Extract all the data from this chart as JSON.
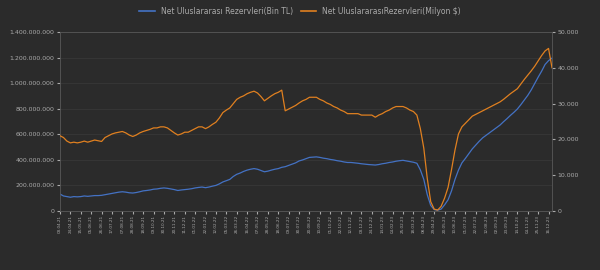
{
  "legend1": "Net Uluslararası Rezervleri(Bin TL)",
  "legend2": "Net UluslararasıRezervleri(Milyon $)",
  "line1_color": "#4472C4",
  "line2_color": "#E08020",
  "background_color": "#2b2b2b",
  "grid_color": "#3d3d3d",
  "text_color": "#aaaaaa",
  "left_ylim": [
    0,
    1400000000
  ],
  "right_ylim": [
    0,
    50000
  ],
  "left_yticks": [
    0,
    200000000,
    400000000,
    600000000,
    800000000,
    1000000000,
    1200000000,
    1400000000
  ],
  "right_yticks": [
    0,
    10000,
    20000,
    30000,
    40000,
    50000
  ],
  "dates": [
    "03.04.21",
    "10.04.21",
    "17.04.21",
    "24.04.21",
    "01.05.21",
    "08.05.21",
    "15.05.21",
    "22.05.21",
    "29.05.21",
    "05.06.21",
    "12.06.21",
    "19.06.21",
    "26.06.21",
    "03.07.21",
    "10.07.21",
    "17.07.21",
    "24.07.21",
    "31.07.21",
    "07.08.21",
    "14.08.21",
    "21.08.21",
    "28.08.21",
    "04.09.21",
    "11.09.21",
    "18.09.21",
    "25.09.21",
    "02.10.21",
    "09.10.21",
    "16.10.21",
    "23.10.21",
    "30.10.21",
    "06.11.21",
    "13.11.21",
    "20.11.21",
    "27.11.21",
    "04.12.21",
    "11.12.21",
    "18.12.21",
    "25.12.21",
    "01.01.22",
    "08.01.22",
    "15.01.22",
    "22.01.22",
    "29.01.22",
    "05.02.22",
    "12.02.22",
    "19.02.22",
    "26.02.22",
    "05.03.22",
    "12.03.22",
    "19.03.22",
    "26.03.22",
    "02.04.22",
    "09.04.22",
    "16.04.22",
    "23.04.22",
    "30.04.22",
    "07.05.22",
    "14.05.22",
    "21.05.22",
    "28.05.22",
    "04.06.22",
    "11.06.22",
    "18.06.22",
    "25.06.22",
    "02.07.22",
    "09.07.22",
    "16.07.22",
    "23.07.22",
    "30.07.22",
    "06.08.22",
    "13.08.22",
    "20.08.22",
    "27.08.22",
    "03.09.22",
    "10.09.22",
    "17.09.22",
    "24.09.22",
    "01.10.22",
    "08.10.22",
    "15.10.22",
    "22.10.22",
    "29.10.22",
    "05.11.22",
    "12.11.22",
    "19.11.22",
    "26.11.22",
    "03.12.22",
    "10.12.22",
    "17.12.22",
    "24.12.22",
    "31.12.22",
    "07.01.23",
    "14.01.23",
    "21.01.23",
    "28.01.23",
    "04.02.23",
    "11.02.23",
    "18.02.23",
    "25.02.23",
    "04.03.23",
    "11.03.23",
    "18.03.23",
    "25.03.23",
    "01.04.23",
    "08.04.23",
    "15.04.23",
    "22.04.23",
    "29.04.23",
    "06.05.23",
    "13.05.23",
    "20.05.23",
    "27.05.23",
    "03.06.23",
    "10.06.23",
    "17.06.23",
    "24.06.23",
    "01.07.23",
    "08.07.23",
    "15.07.23",
    "22.07.23",
    "29.07.23",
    "05.08.23",
    "12.08.23",
    "19.08.23",
    "26.08.23",
    "02.09.23",
    "09.09.23",
    "16.09.23",
    "23.09.23",
    "30.09.23",
    "07.10.23",
    "14.10.23",
    "21.10.23",
    "28.10.23",
    "04.11.23",
    "11.11.23",
    "18.11.23",
    "25.11.23",
    "02.12.23",
    "09.12.23",
    "16.12.23",
    "23.12.23"
  ],
  "tl_values": [
    130000000,
    115000000,
    110000000,
    105000000,
    110000000,
    108000000,
    110000000,
    115000000,
    112000000,
    115000000,
    118000000,
    118000000,
    120000000,
    125000000,
    130000000,
    135000000,
    140000000,
    145000000,
    148000000,
    145000000,
    140000000,
    138000000,
    142000000,
    148000000,
    155000000,
    158000000,
    162000000,
    168000000,
    170000000,
    175000000,
    178000000,
    175000000,
    170000000,
    165000000,
    158000000,
    162000000,
    165000000,
    168000000,
    172000000,
    178000000,
    182000000,
    185000000,
    180000000,
    185000000,
    192000000,
    198000000,
    210000000,
    225000000,
    235000000,
    245000000,
    268000000,
    285000000,
    295000000,
    308000000,
    318000000,
    325000000,
    330000000,
    325000000,
    315000000,
    305000000,
    310000000,
    318000000,
    325000000,
    330000000,
    340000000,
    345000000,
    355000000,
    365000000,
    375000000,
    390000000,
    398000000,
    408000000,
    418000000,
    420000000,
    422000000,
    418000000,
    412000000,
    408000000,
    402000000,
    398000000,
    392000000,
    388000000,
    382000000,
    378000000,
    378000000,
    375000000,
    372000000,
    368000000,
    365000000,
    362000000,
    360000000,
    358000000,
    362000000,
    368000000,
    372000000,
    378000000,
    382000000,
    388000000,
    392000000,
    395000000,
    390000000,
    385000000,
    380000000,
    372000000,
    320000000,
    245000000,
    125000000,
    40000000,
    8000000,
    3000000,
    12000000,
    45000000,
    85000000,
    155000000,
    245000000,
    318000000,
    375000000,
    410000000,
    448000000,
    485000000,
    515000000,
    545000000,
    572000000,
    592000000,
    612000000,
    632000000,
    652000000,
    672000000,
    698000000,
    722000000,
    748000000,
    772000000,
    798000000,
    832000000,
    868000000,
    905000000,
    948000000,
    998000000,
    1048000000,
    1095000000,
    1148000000,
    1178000000,
    1198000000
  ],
  "usd_values": [
    21000,
    20500,
    19500,
    19000,
    19200,
    19000,
    19200,
    19500,
    19200,
    19500,
    19800,
    19600,
    19400,
    20500,
    21000,
    21500,
    21800,
    22000,
    22200,
    21800,
    21200,
    20800,
    21200,
    21800,
    22200,
    22500,
    22800,
    23200,
    23200,
    23500,
    23500,
    23200,
    22500,
    21800,
    21200,
    21500,
    22000,
    22000,
    22500,
    23000,
    23500,
    23500,
    23000,
    23500,
    24200,
    24800,
    26000,
    27500,
    28200,
    28800,
    30000,
    31200,
    31800,
    32200,
    32800,
    33200,
    33500,
    33000,
    32000,
    30800,
    31500,
    32200,
    32800,
    33200,
    33800,
    28000,
    28500,
    29000,
    29500,
    30200,
    30800,
    31200,
    31800,
    31800,
    31800,
    31200,
    30800,
    30200,
    29800,
    29200,
    28800,
    28200,
    27800,
    27200,
    27200,
    27200,
    27200,
    26800,
    26800,
    26800,
    26800,
    26200,
    26800,
    27200,
    27800,
    28200,
    28800,
    29200,
    29200,
    29200,
    28800,
    28200,
    27800,
    26800,
    23000,
    17500,
    9000,
    2500,
    400,
    150,
    1200,
    3500,
    6500,
    11500,
    17000,
    21500,
    23500,
    24500,
    25500,
    26500,
    27000,
    27500,
    28000,
    28500,
    29000,
    29500,
    30000,
    30500,
    31200,
    32000,
    32800,
    33500,
    34200,
    35500,
    36800,
    38000,
    39200,
    40500,
    42000,
    43500,
    44800,
    45500,
    40086
  ]
}
